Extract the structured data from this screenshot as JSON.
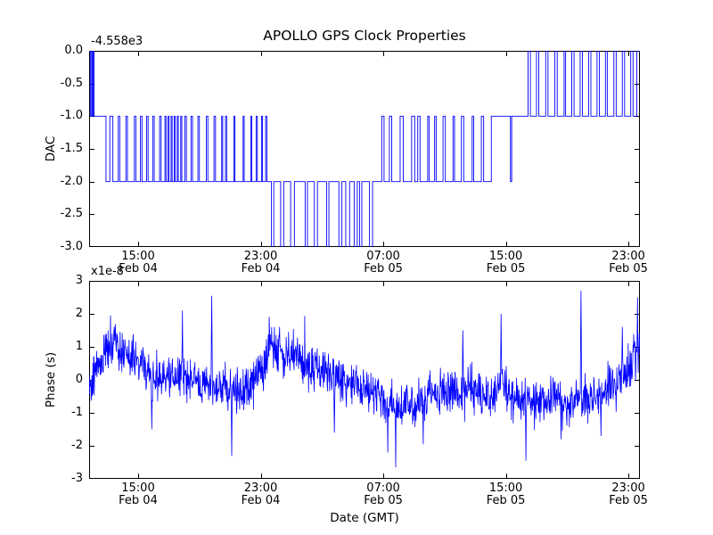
{
  "figure": {
    "background": "#ffffff",
    "text_color": "#000000"
  },
  "x_axis": {
    "xlim_hours": [
      11.8,
      47.75
    ],
    "label": "Date (GMT)",
    "ticks": [
      {
        "hour": 15,
        "time": "15:00",
        "date": "Feb 04"
      },
      {
        "hour": 23,
        "time": "23:00",
        "date": "Feb 04"
      },
      {
        "hour": 31,
        "time": "07:00",
        "date": "Feb 05"
      },
      {
        "hour": 39,
        "time": "15:00",
        "date": "Feb 05"
      },
      {
        "hour": 47,
        "time": "23:00",
        "date": "Feb 05"
      }
    ]
  },
  "chart_data": [
    {
      "type": "line",
      "name": "dac",
      "title": "APOLLO GPS Clock Properties",
      "ylabel": "DAC",
      "y_offset_text": "-4.558e3",
      "y_offset_value": -4558,
      "ylim": [
        -3.0,
        0.0
      ],
      "y_ticks": [
        0.0,
        -0.5,
        -1.0,
        -1.5,
        -2.0,
        -2.5,
        -3.0
      ],
      "y_tick_labels": [
        "0.0",
        "-0.5",
        "-1.0",
        "-1.5",
        "-2.0",
        "-2.5",
        "-3.0"
      ],
      "line_color": "#0000ff",
      "step_points": [
        [
          11.8,
          0
        ],
        [
          11.88,
          -1
        ],
        [
          11.96,
          0
        ],
        [
          12.02,
          -1
        ],
        [
          12.06,
          0
        ],
        [
          12.12,
          -1
        ],
        [
          12.9,
          -2
        ],
        [
          13.15,
          -1
        ],
        [
          13.35,
          -2
        ],
        [
          13.7,
          -1
        ],
        [
          13.8,
          -2
        ],
        [
          14.2,
          -1
        ],
        [
          14.3,
          -2
        ],
        [
          14.75,
          -1
        ],
        [
          14.85,
          -2
        ],
        [
          15.15,
          -1
        ],
        [
          15.25,
          -2
        ],
        [
          15.55,
          -1
        ],
        [
          15.65,
          -2
        ],
        [
          15.95,
          -1
        ],
        [
          16.05,
          -2
        ],
        [
          16.4,
          -1
        ],
        [
          16.5,
          -2
        ],
        [
          16.75,
          -1
        ],
        [
          16.82,
          -2
        ],
        [
          16.95,
          -1
        ],
        [
          17.02,
          -2
        ],
        [
          17.15,
          -1
        ],
        [
          17.22,
          -2
        ],
        [
          17.35,
          -1
        ],
        [
          17.42,
          -2
        ],
        [
          17.55,
          -1
        ],
        [
          17.62,
          -2
        ],
        [
          17.78,
          -1
        ],
        [
          17.85,
          -2
        ],
        [
          18.05,
          -1
        ],
        [
          18.15,
          -2
        ],
        [
          18.45,
          -1
        ],
        [
          18.55,
          -2
        ],
        [
          18.9,
          -1
        ],
        [
          19.0,
          -2
        ],
        [
          19.45,
          -1
        ],
        [
          19.55,
          -2
        ],
        [
          19.95,
          -1
        ],
        [
          20.05,
          -2
        ],
        [
          20.45,
          -1
        ],
        [
          20.52,
          -2
        ],
        [
          20.7,
          -1
        ],
        [
          20.78,
          -2
        ],
        [
          21.25,
          -1
        ],
        [
          21.32,
          -2
        ],
        [
          21.85,
          -1
        ],
        [
          21.92,
          -2
        ],
        [
          22.35,
          -1
        ],
        [
          22.42,
          -2
        ],
        [
          22.7,
          -1
        ],
        [
          22.78,
          -2
        ],
        [
          23.05,
          -1
        ],
        [
          23.12,
          -2
        ],
        [
          23.32,
          -1
        ],
        [
          23.4,
          -2
        ],
        [
          23.7,
          -3
        ],
        [
          23.85,
          -2
        ],
        [
          24.3,
          -3
        ],
        [
          24.5,
          -2
        ],
        [
          24.95,
          -3
        ],
        [
          25.2,
          -2
        ],
        [
          25.9,
          -3
        ],
        [
          26.05,
          -2
        ],
        [
          26.5,
          -3
        ],
        [
          26.7,
          -2
        ],
        [
          27.3,
          -3
        ],
        [
          27.45,
          -2
        ],
        [
          28.1,
          -3
        ],
        [
          28.3,
          -2
        ],
        [
          28.55,
          -3
        ],
        [
          28.8,
          -2
        ],
        [
          29.1,
          -3
        ],
        [
          29.3,
          -2
        ],
        [
          29.45,
          -3
        ],
        [
          29.6,
          -2
        ],
        [
          30.1,
          -3
        ],
        [
          30.3,
          -2
        ],
        [
          30.9,
          -1
        ],
        [
          31.05,
          -2
        ],
        [
          31.4,
          -1
        ],
        [
          31.55,
          -2
        ],
        [
          32.1,
          -1
        ],
        [
          32.3,
          -2
        ],
        [
          32.85,
          -1
        ],
        [
          33.05,
          -2
        ],
        [
          33.25,
          -1
        ],
        [
          33.4,
          -2
        ],
        [
          33.9,
          -1
        ],
        [
          34.0,
          -2
        ],
        [
          34.35,
          -1
        ],
        [
          34.45,
          -2
        ],
        [
          34.9,
          -1
        ],
        [
          35.05,
          -2
        ],
        [
          35.55,
          -1
        ],
        [
          35.65,
          -2
        ],
        [
          36.1,
          -1
        ],
        [
          36.25,
          -2
        ],
        [
          36.8,
          -1
        ],
        [
          36.9,
          -2
        ],
        [
          37.4,
          -1
        ],
        [
          37.55,
          -2
        ],
        [
          38.05,
          -1
        ],
        [
          39.3,
          -2
        ],
        [
          39.38,
          -1
        ],
        [
          40.45,
          0
        ],
        [
          40.6,
          -1
        ],
        [
          41.0,
          0
        ],
        [
          41.15,
          -1
        ],
        [
          41.6,
          0
        ],
        [
          41.75,
          -1
        ],
        [
          42.2,
          0
        ],
        [
          42.35,
          -1
        ],
        [
          42.8,
          0
        ],
        [
          42.9,
          -1
        ],
        [
          43.3,
          0
        ],
        [
          43.45,
          -1
        ],
        [
          43.85,
          0
        ],
        [
          44.0,
          -1
        ],
        [
          44.4,
          0
        ],
        [
          44.55,
          -1
        ],
        [
          44.95,
          0
        ],
        [
          45.1,
          -1
        ],
        [
          45.5,
          0
        ],
        [
          45.62,
          -1
        ],
        [
          46.05,
          0
        ],
        [
          46.2,
          -1
        ],
        [
          46.6,
          0
        ],
        [
          46.75,
          -1
        ],
        [
          47.15,
          0
        ],
        [
          47.3,
          -1
        ],
        [
          47.55,
          0
        ]
      ]
    },
    {
      "type": "line",
      "name": "phase",
      "ylabel": "Phase (s)",
      "y_offset_text": "x1e-8",
      "y_unit_scale": 1e-08,
      "xlabel": "Date (GMT)",
      "ylim": [
        -3,
        3
      ],
      "y_ticks": [
        3,
        2,
        1,
        0,
        -1,
        -2,
        -3
      ],
      "y_tick_labels": [
        "3",
        "2",
        "1",
        "0",
        "-1",
        "-2",
        "-3"
      ],
      "line_color": "#0000ff",
      "n_samples": 1600,
      "noise_sigma": 0.33,
      "noise_seed": 42,
      "keyframes": [
        [
          11.8,
          -0.1
        ],
        [
          12.2,
          0.25
        ],
        [
          12.6,
          0.6
        ],
        [
          13.0,
          0.95
        ],
        [
          13.4,
          1.1
        ],
        [
          13.8,
          0.85
        ],
        [
          14.2,
          0.75
        ],
        [
          14.6,
          0.6
        ],
        [
          15.0,
          0.45
        ],
        [
          15.5,
          0.3
        ],
        [
          16.0,
          0.15
        ],
        [
          16.5,
          0.05
        ],
        [
          17.0,
          0.1
        ],
        [
          17.5,
          -0.05
        ],
        [
          18.0,
          0.05
        ],
        [
          18.5,
          0.15
        ],
        [
          19.0,
          -0.05
        ],
        [
          19.5,
          -0.15
        ],
        [
          20.0,
          -0.25
        ],
        [
          20.5,
          -0.15
        ],
        [
          21.0,
          -0.25
        ],
        [
          21.5,
          -0.35
        ],
        [
          22.0,
          -0.2
        ],
        [
          22.5,
          0.0
        ],
        [
          23.0,
          0.25
        ],
        [
          23.4,
          0.7
        ],
        [
          23.8,
          1.0
        ],
        [
          24.2,
          0.95
        ],
        [
          24.6,
          0.75
        ],
        [
          25.0,
          0.9
        ],
        [
          25.4,
          0.7
        ],
        [
          25.8,
          0.5
        ],
        [
          26.2,
          0.35
        ],
        [
          26.6,
          0.45
        ],
        [
          27.0,
          0.3
        ],
        [
          27.5,
          0.15
        ],
        [
          28.0,
          0.05
        ],
        [
          28.5,
          -0.05
        ],
        [
          29.0,
          -0.1
        ],
        [
          29.5,
          -0.2
        ],
        [
          30.0,
          -0.3
        ],
        [
          30.5,
          -0.4
        ],
        [
          31.0,
          -0.55
        ],
        [
          31.5,
          -0.8
        ],
        [
          32.0,
          -0.95
        ],
        [
          32.5,
          -0.7
        ],
        [
          33.0,
          -0.75
        ],
        [
          33.5,
          -0.55
        ],
        [
          34.0,
          -0.45
        ],
        [
          34.5,
          -0.5
        ],
        [
          35.0,
          -0.4
        ],
        [
          35.5,
          -0.35
        ],
        [
          36.0,
          -0.45
        ],
        [
          36.5,
          -0.35
        ],
        [
          37.0,
          -0.25
        ],
        [
          37.5,
          -0.4
        ],
        [
          38.0,
          -0.5
        ],
        [
          38.5,
          -0.35
        ],
        [
          39.0,
          -0.3
        ],
        [
          39.5,
          -0.55
        ],
        [
          40.0,
          -0.65
        ],
        [
          40.5,
          -0.6
        ],
        [
          41.0,
          -0.75
        ],
        [
          41.5,
          -0.65
        ],
        [
          42.0,
          -0.55
        ],
        [
          42.5,
          -0.65
        ],
        [
          43.0,
          -0.7
        ],
        [
          43.5,
          -0.55
        ],
        [
          44.0,
          -0.6
        ],
        [
          44.5,
          -0.45
        ],
        [
          45.0,
          -0.5
        ],
        [
          45.5,
          -0.3
        ],
        [
          46.0,
          -0.15
        ],
        [
          46.5,
          0.05
        ],
        [
          47.0,
          0.3
        ],
        [
          47.4,
          0.6
        ],
        [
          47.75,
          0.75
        ]
      ],
      "spikes": [
        [
          13.2,
          1.95
        ],
        [
          15.9,
          -1.5
        ],
        [
          17.9,
          2.1
        ],
        [
          19.8,
          2.55
        ],
        [
          21.1,
          -2.3
        ],
        [
          23.9,
          1.6
        ],
        [
          27.8,
          -1.6
        ],
        [
          31.3,
          -2.2
        ],
        [
          31.8,
          -2.65
        ],
        [
          33.6,
          -1.95
        ],
        [
          36.2,
          1.5
        ],
        [
          38.7,
          2.0
        ],
        [
          40.3,
          -2.45
        ],
        [
          42.6,
          -1.8
        ],
        [
          43.9,
          2.7
        ],
        [
          45.2,
          -1.7
        ],
        [
          46.6,
          1.6
        ],
        [
          47.6,
          2.5
        ]
      ]
    }
  ]
}
